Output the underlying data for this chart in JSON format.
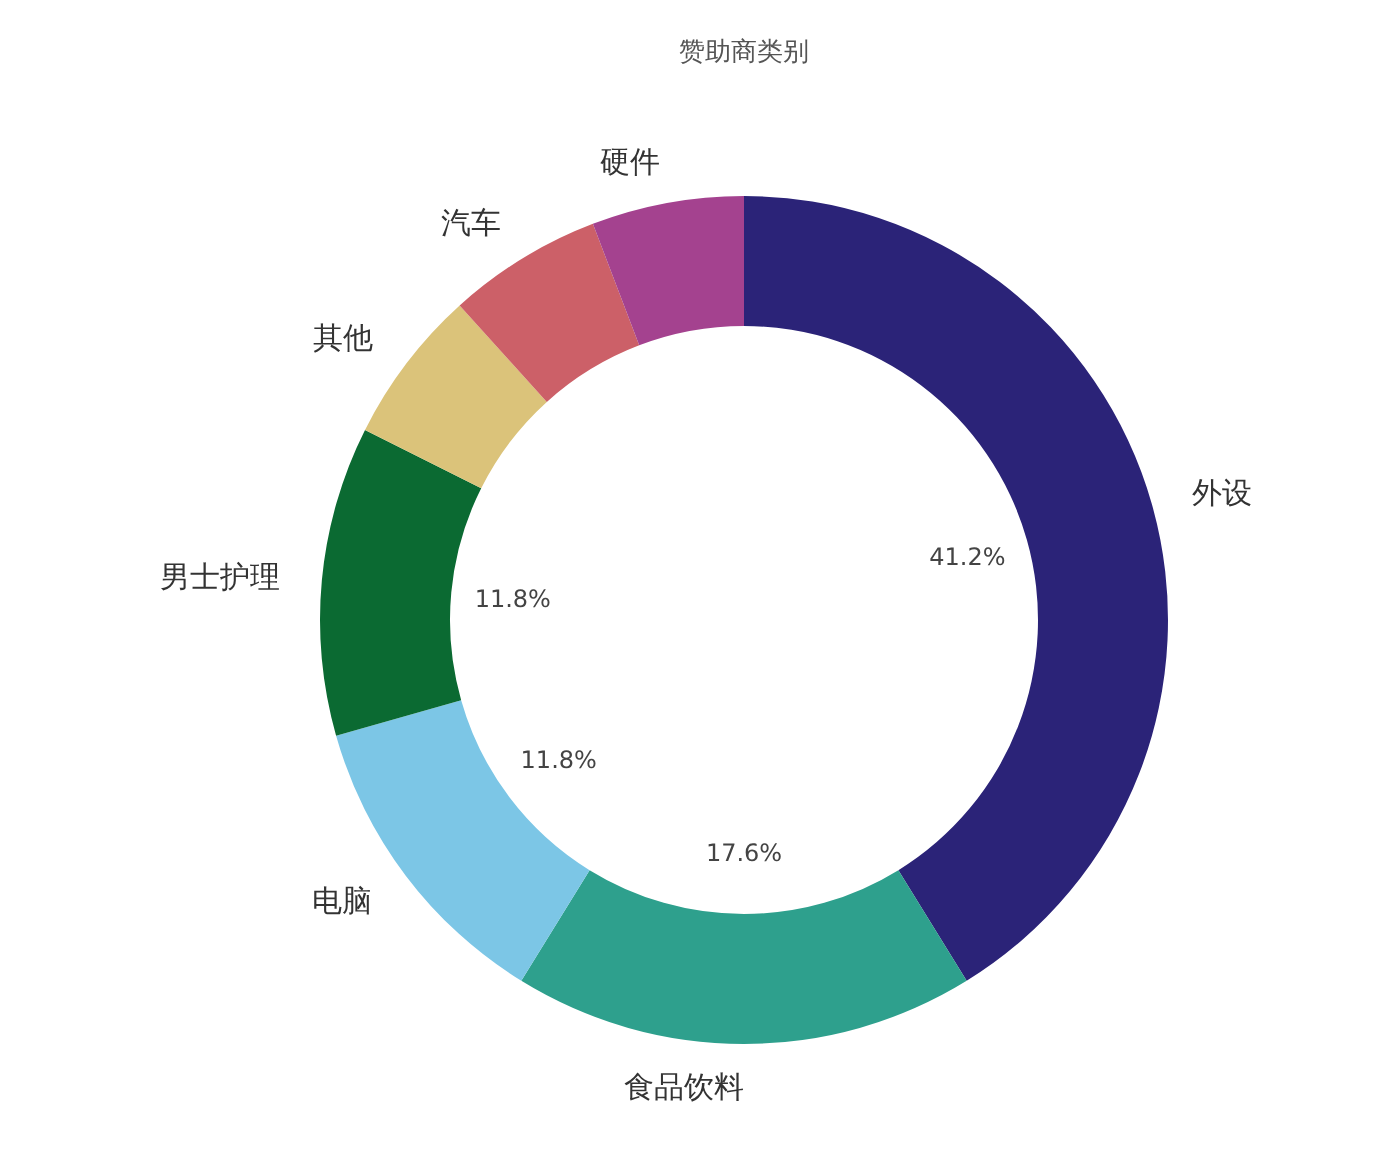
{
  "chart_data": {
    "type": "donut",
    "title": "赞助商类别",
    "categories": [
      "外设",
      "食品饮料",
      "电脑",
      "男士护理",
      "其他",
      "汽车",
      "硬件"
    ],
    "values": [
      41.2,
      17.6,
      11.8,
      11.8,
      5.9,
      5.9,
      5.8
    ],
    "colors": [
      "#2b2378",
      "#2ea08d",
      "#7cc6e6",
      "#0b6a32",
      "#dbc37a",
      "#cc6068",
      "#a4428f"
    ],
    "value_labels": [
      "41.2%",
      "17.6%",
      "11.8%",
      "11.8%",
      null,
      null,
      null
    ]
  }
}
